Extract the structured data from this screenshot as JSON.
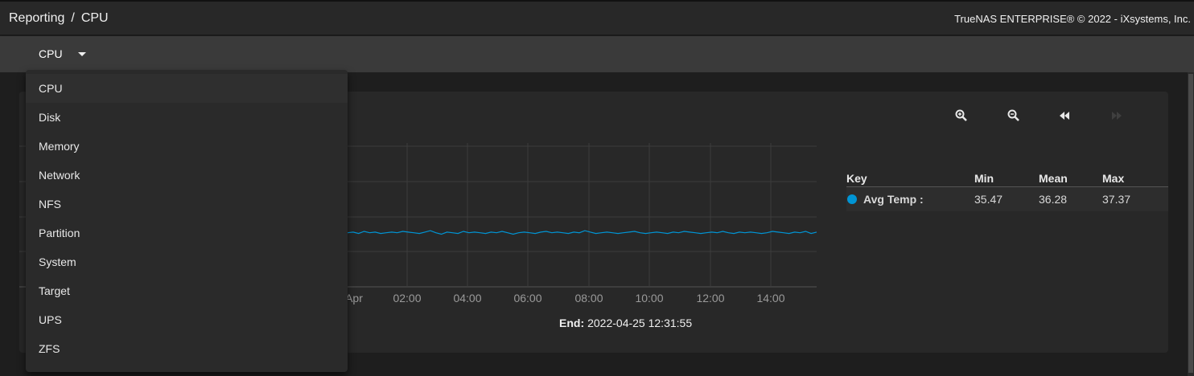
{
  "header": {
    "breadcrumb_root": "Reporting",
    "breadcrumb_sep": "/",
    "breadcrumb_current": "CPU",
    "copyright": "TrueNAS ENTERPRISE® © 2022 - iXsystems, Inc."
  },
  "report_selector": {
    "selected": "CPU",
    "options": [
      "CPU",
      "Disk",
      "Memory",
      "Network",
      "NFS",
      "Partition",
      "System",
      "Target",
      "UPS",
      "ZFS"
    ]
  },
  "toolbar": {
    "zoom_in_icon": "zoom-in-icon",
    "zoom_out_icon": "zoom-out-icon",
    "back_icon": "step-backward-icon",
    "forward_icon": "step-forward-icon"
  },
  "chart_data": {
    "type": "line",
    "x_ticks": [
      "Apr",
      "02:00",
      "04:00",
      "06:00",
      "08:00",
      "10:00",
      "12:00",
      "14:00"
    ],
    "series": [
      {
        "name": "Avg Temp :",
        "color": "#0095d5",
        "values": [
          36.2,
          36.3,
          36.1,
          36.4,
          36.2,
          36.3,
          36.1,
          36.2,
          36.3,
          36.2,
          36.4,
          36.3,
          36.2,
          36.1,
          36.3,
          36.5,
          36.2,
          36.0,
          36.3,
          36.2,
          36.1,
          36.4,
          36.2,
          36.3,
          36.2,
          36.1,
          36.3,
          36.2,
          36.4,
          36.2,
          36.0,
          36.2,
          36.3,
          36.2,
          36.1,
          36.3,
          36.4,
          36.2,
          36.3,
          36.2,
          36.1,
          36.3,
          36.2,
          36.5,
          36.3,
          36.1,
          36.2,
          36.3,
          36.2,
          36.1,
          36.2,
          36.3,
          36.4,
          36.2,
          36.1,
          36.2,
          36.3,
          36.2,
          36.1,
          36.3,
          36.2,
          36.4,
          36.3,
          36.2,
          36.1,
          36.2,
          36.3,
          36.2,
          36.4,
          36.2,
          36.1,
          36.3,
          36.2,
          36.3,
          36.2,
          36.1,
          36.2,
          36.4,
          36.3,
          36.2,
          36.1,
          36.3,
          36.2,
          36.4,
          36.1,
          36.3
        ]
      }
    ]
  },
  "legend": {
    "headers": {
      "key": "Key",
      "min": "Min",
      "mean": "Mean",
      "max": "Max"
    },
    "rows": [
      {
        "name": "Avg Temp :",
        "color": "#0095d5",
        "min": "35.47",
        "mean": "36.28",
        "max": "37.37"
      }
    ]
  },
  "footer": {
    "start_tail": ")",
    "end_label": "End:",
    "end_value": "2022-04-25 12:31:55"
  }
}
